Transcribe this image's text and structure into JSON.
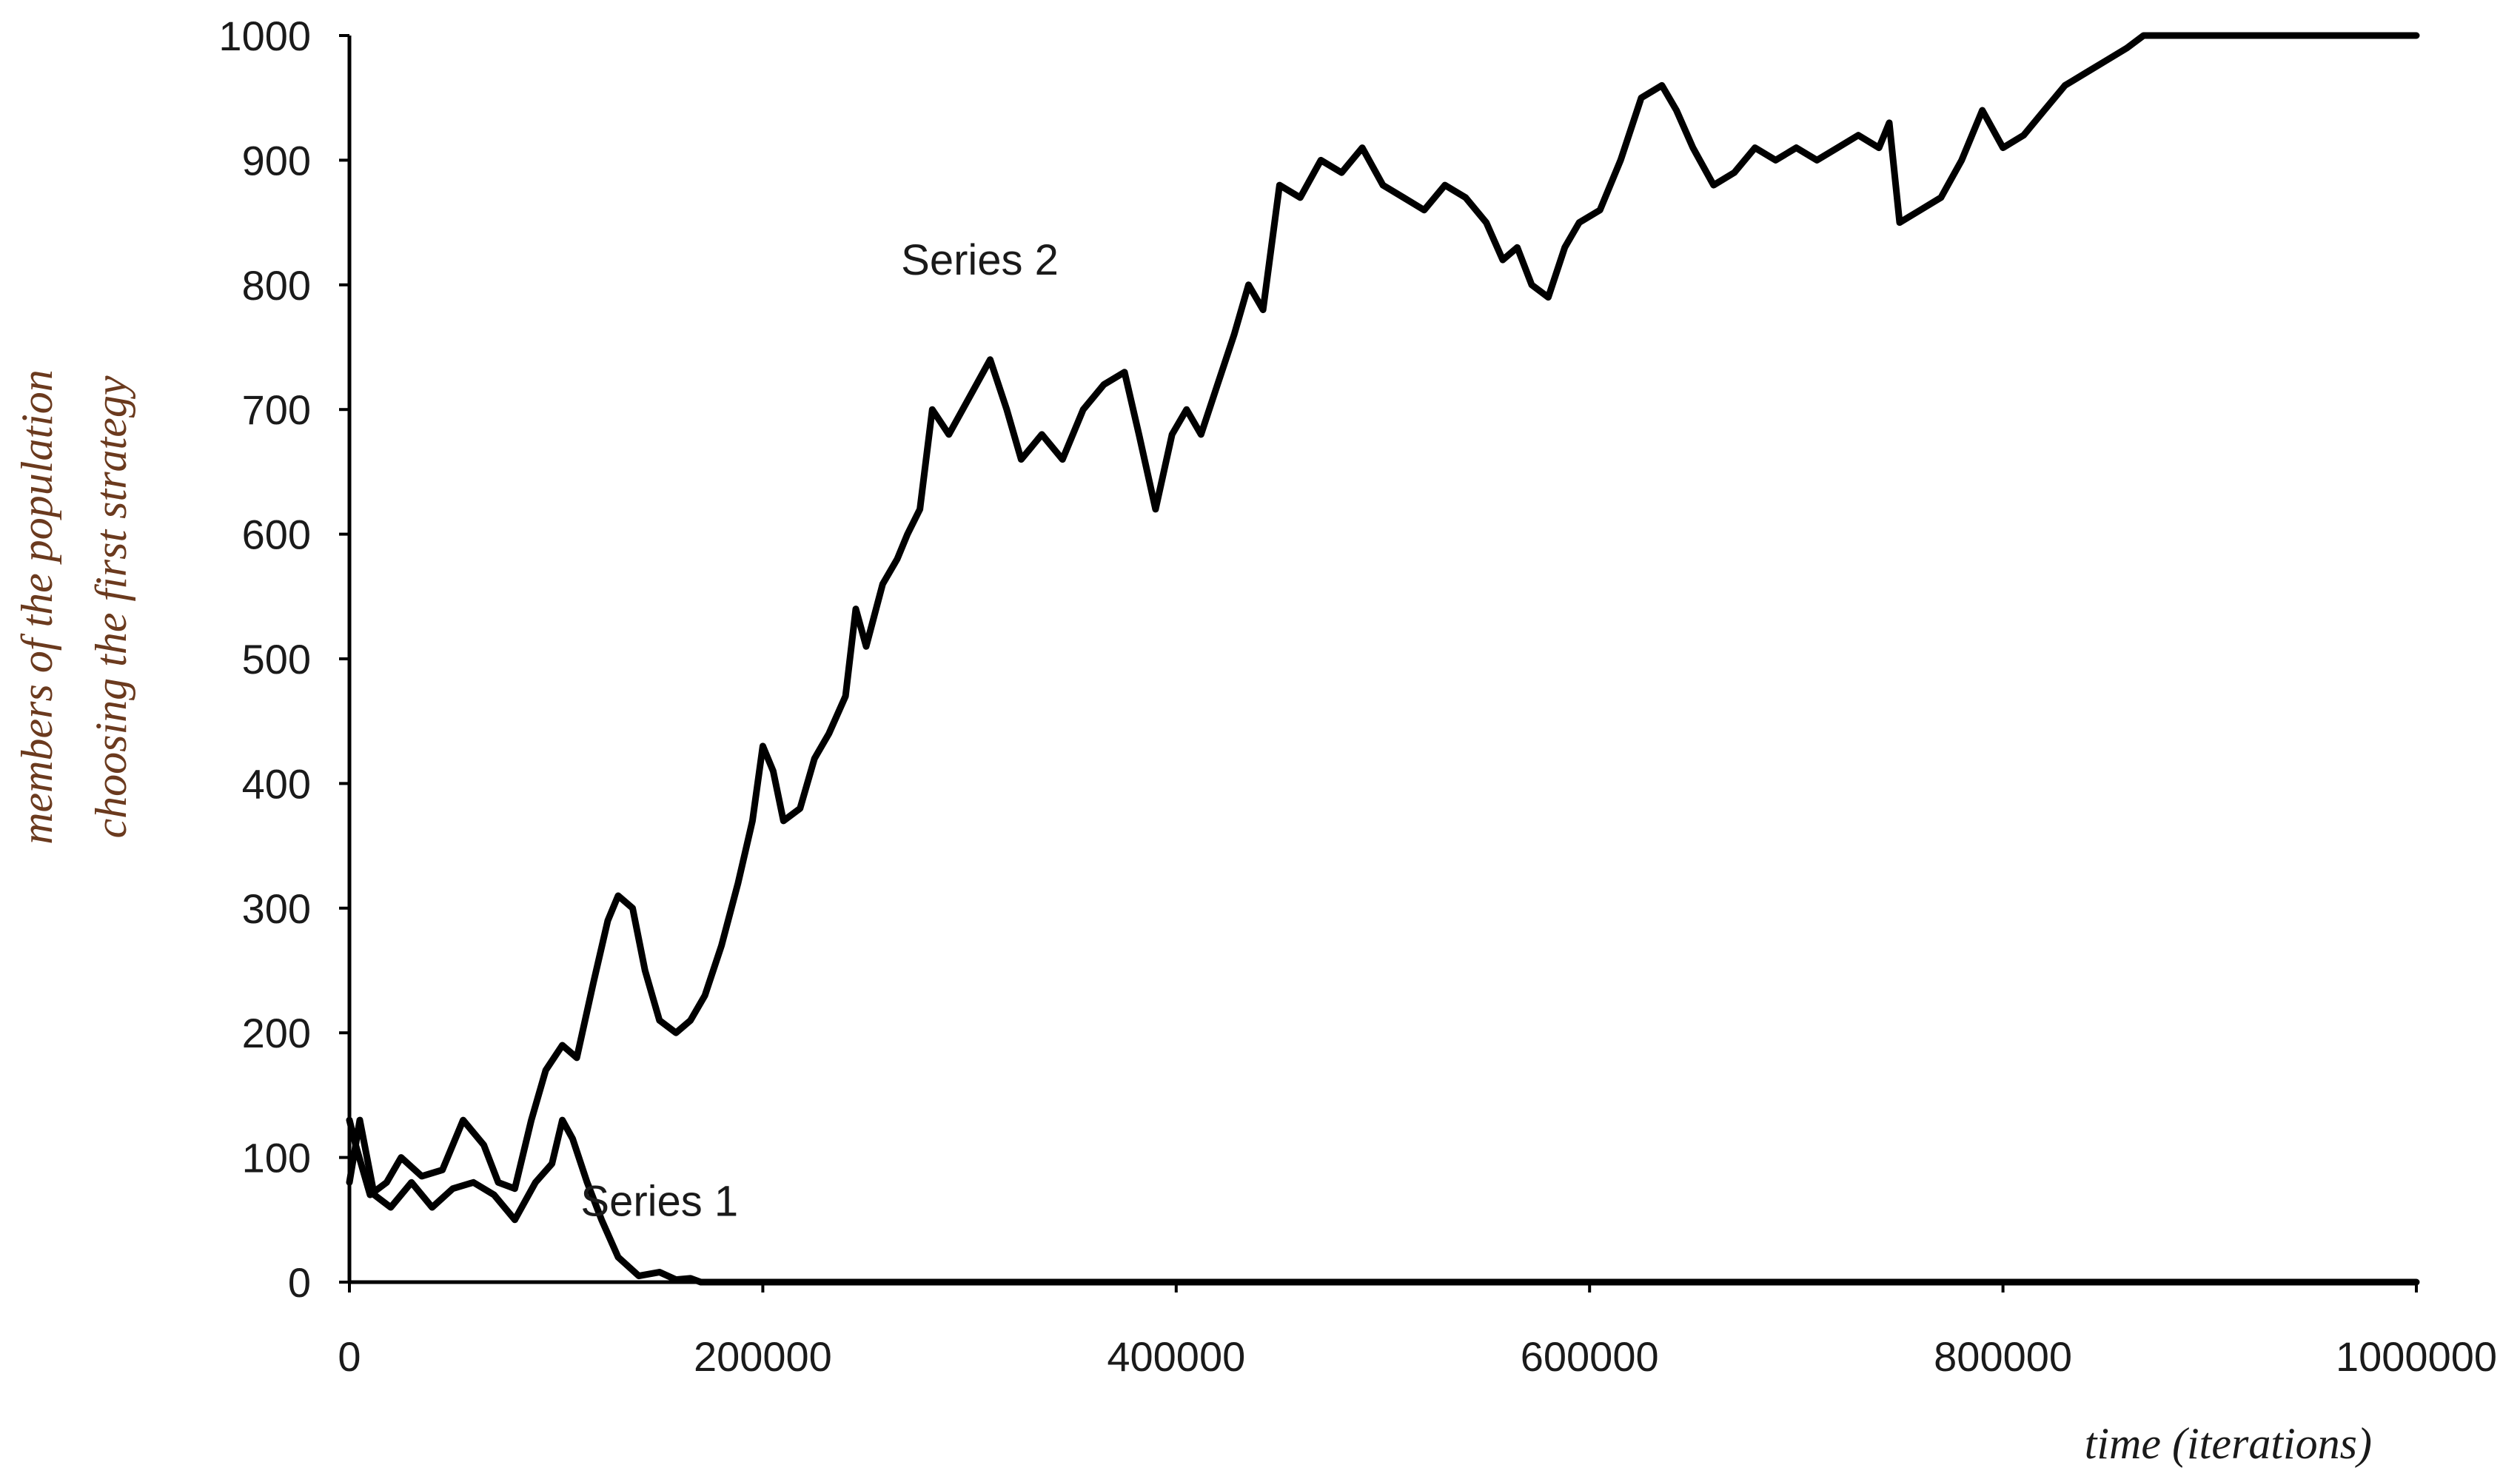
{
  "chart_data": {
    "type": "line",
    "title": "",
    "xlabel": "time (iterations)",
    "ylabel_lines": [
      "members of the population",
      "choosing the first strategy"
    ],
    "xlim": [
      0,
      1000000
    ],
    "ylim": [
      0,
      1000
    ],
    "x_ticks": [
      0,
      200000,
      400000,
      600000,
      800000,
      1000000
    ],
    "x_tick_labels": [
      "0",
      "200000",
      "400000",
      "600000",
      "800000",
      "1000000"
    ],
    "y_ticks": [
      0,
      100,
      200,
      300,
      400,
      500,
      600,
      700,
      800,
      900,
      1000
    ],
    "y_tick_labels": [
      "0",
      "100",
      "200",
      "300",
      "400",
      "500",
      "600",
      "700",
      "800",
      "900",
      "1000"
    ],
    "grid": false,
    "colors": {
      "line": "#000000",
      "ylabel": "#6b3a1e",
      "xlabel": "#1a1a1a"
    },
    "series": [
      {
        "name": "Series 1",
        "x": [
          0,
          5000,
          12000,
          20000,
          30000,
          40000,
          50000,
          60000,
          70000,
          80000,
          90000,
          98000,
          103000,
          108000,
          115000,
          122000,
          130000,
          140000,
          150000,
          158000,
          165000,
          170000,
          180000,
          1000000
        ],
        "y": [
          80,
          130,
          70,
          60,
          80,
          60,
          75,
          80,
          70,
          50,
          80,
          95,
          130,
          115,
          80,
          50,
          20,
          5,
          8,
          2,
          3,
          0,
          0,
          0
        ]
      },
      {
        "name": "Series 2",
        "x": [
          0,
          3000,
          10000,
          18000,
          25000,
          35000,
          45000,
          55000,
          65000,
          72000,
          80000,
          88000,
          95000,
          103000,
          110000,
          118000,
          125000,
          130000,
          137000,
          143000,
          150000,
          158000,
          165000,
          172000,
          180000,
          188000,
          195000,
          200000,
          205000,
          210000,
          218000,
          225000,
          232000,
          240000,
          245000,
          250000,
          258000,
          265000,
          270000,
          276000,
          282000,
          290000,
          300000,
          310000,
          318000,
          325000,
          335000,
          345000,
          355000,
          365000,
          375000,
          382000,
          390000,
          398000,
          405000,
          412000,
          420000,
          428000,
          435000,
          442000,
          450000,
          460000,
          470000,
          480000,
          490000,
          500000,
          510000,
          520000,
          530000,
          540000,
          550000,
          558000,
          565000,
          572000,
          580000,
          588000,
          595000,
          605000,
          615000,
          625000,
          635000,
          642000,
          650000,
          660000,
          670000,
          680000,
          690000,
          700000,
          710000,
          720000,
          730000,
          740000,
          745000,
          750000,
          760000,
          770000,
          780000,
          790000,
          800000,
          810000,
          820000,
          830000,
          840000,
          850000,
          860000,
          868000,
          880000,
          900000,
          950000,
          1000000
        ],
        "y": [
          130,
          110,
          70,
          80,
          100,
          85,
          90,
          130,
          110,
          80,
          75,
          130,
          170,
          190,
          180,
          240,
          290,
          310,
          300,
          250,
          210,
          200,
          210,
          230,
          270,
          320,
          370,
          430,
          410,
          370,
          380,
          420,
          440,
          470,
          540,
          510,
          560,
          580,
          600,
          620,
          700,
          680,
          710,
          740,
          700,
          660,
          680,
          660,
          700,
          720,
          730,
          680,
          620,
          680,
          700,
          680,
          720,
          760,
          800,
          780,
          880,
          870,
          900,
          890,
          910,
          880,
          870,
          860,
          880,
          870,
          850,
          820,
          830,
          800,
          790,
          830,
          850,
          860,
          900,
          950,
          960,
          940,
          910,
          880,
          890,
          910,
          900,
          910,
          900,
          910,
          920,
          910,
          930,
          850,
          860,
          870,
          900,
          940,
          910,
          920,
          940,
          960,
          970,
          980,
          990,
          1000,
          1000,
          1000,
          1000,
          1000
        ]
      }
    ],
    "annotations": [
      {
        "text": "Series 2",
        "x": 305000,
        "y": 820
      },
      {
        "text": "Series 1",
        "x": 150000,
        "y": 65
      }
    ]
  }
}
